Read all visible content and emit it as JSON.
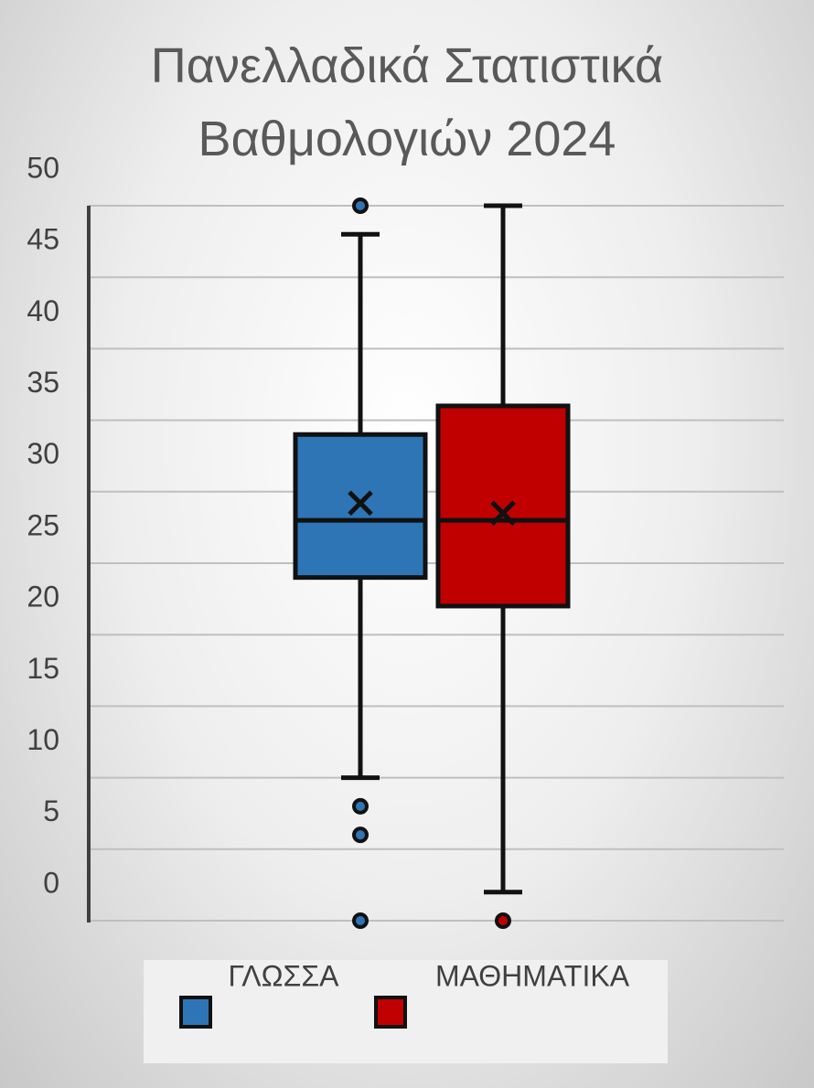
{
  "chart_data": {
    "type": "box",
    "title": "Πανελλαδικά Στατιστικά Βαθμολογιών 2024",
    "ylim": [
      0,
      50
    ],
    "yticks": [
      0,
      5,
      10,
      15,
      20,
      25,
      30,
      35,
      40,
      45,
      50
    ],
    "grid": true,
    "series": [
      {
        "name": "ΓΛΩΣΣΑ",
        "color": "#2e75b6",
        "min": 10,
        "q1": 24,
        "median": 28,
        "q3": 34,
        "max": 48,
        "mean": 29.2,
        "outliers": [
          50,
          8,
          6,
          0
        ]
      },
      {
        "name": "ΜΑΘΗΜΑΤΙΚΑ",
        "color": "#c00000",
        "min": 2,
        "q1": 22,
        "median": 28,
        "q3": 36,
        "max": 50,
        "mean": 28.5,
        "outliers": [
          0
        ]
      }
    ]
  }
}
